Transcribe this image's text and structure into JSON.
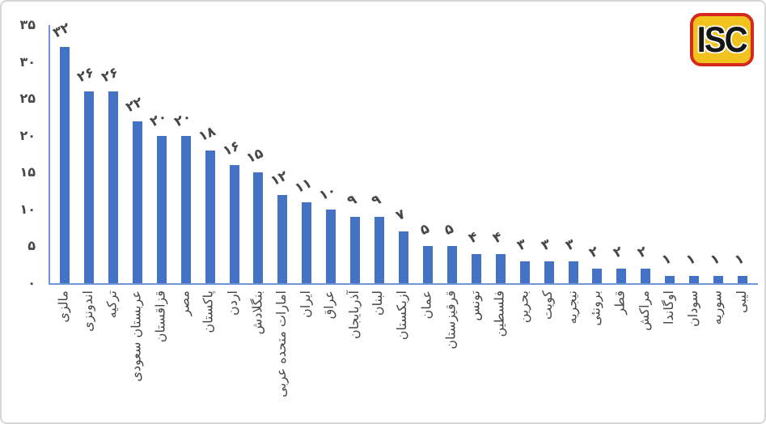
{
  "logo": {
    "text": "ISC",
    "background": "#F2C21F",
    "border_color": "#D6281E",
    "text_color": "#161616"
  },
  "chart_data": {
    "type": "bar",
    "title": "",
    "xlabel": "",
    "ylabel": "",
    "categories": [
      "مالزی",
      "اندونزی",
      "ترکیه",
      "عربستان سعودی",
      "قزاقستان",
      "مصر",
      "پاکستان",
      "اردن",
      "بنگلادش",
      "امارات متحده عربی",
      "ایران",
      "عراق",
      "آذربایجان",
      "لبنان",
      "ازبکستان",
      "عمان",
      "قرقیزستان",
      "تونس",
      "فلسطین",
      "بحرین",
      "کویت",
      "نیجریه",
      "برونئی",
      "قطر",
      "مراکش",
      "اوگاندا",
      "سودان",
      "سوریه",
      "لیبی"
    ],
    "values": [
      32,
      26,
      26,
      22,
      20,
      20,
      18,
      16,
      15,
      12,
      11,
      10,
      9,
      9,
      7,
      5,
      5,
      4,
      4,
      3,
      3,
      3,
      2,
      2,
      2,
      1,
      1,
      1,
      1
    ],
    "value_labels": [
      "۳۲",
      "۲۶",
      "۲۶",
      "۲۲",
      "۲۰",
      "۲۰",
      "۱۸",
      "۱۶",
      "۱۵",
      "۱۲",
      "۱۱",
      "۱۰",
      "۹",
      "۹",
      "۷",
      "۵",
      "۵",
      "۴",
      "۴",
      "۳",
      "۳",
      "۳",
      "۲",
      "۲",
      "۲",
      "۱",
      "۱",
      "۱",
      "۱"
    ],
    "y_axis": {
      "range": [
        0,
        35
      ],
      "tick_step": 5,
      "ticks": [
        {
          "label": "۳۵",
          "value": 35
        },
        {
          "label": "۳۰",
          "value": 30
        },
        {
          "label": "۲۵",
          "value": 25
        },
        {
          "label": "۲۰",
          "value": 20
        },
        {
          "label": "۱۵",
          "value": 15
        },
        {
          "label": "۱۰",
          "value": 10
        },
        {
          "label": "۵",
          "value": 5
        },
        {
          "label": "۰",
          "value": 0
        }
      ]
    },
    "legend_position": "none",
    "gridlines": false,
    "bar_color": "#4472C4",
    "axis_color": "#6E96D6",
    "text_color": "#474747"
  }
}
